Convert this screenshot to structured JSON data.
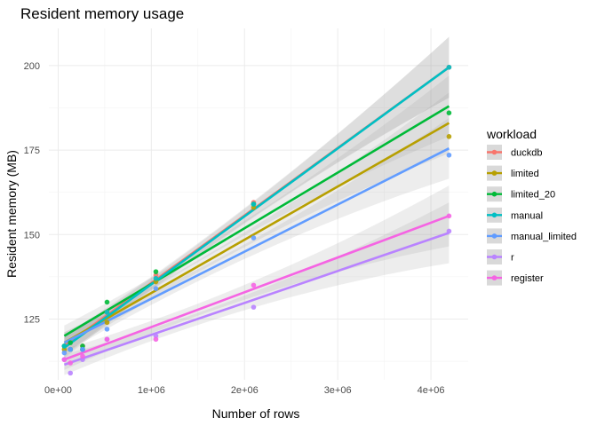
{
  "chart_data": {
    "type": "scatter",
    "title": "Resident memory usage",
    "xlabel": "Number of rows",
    "ylabel": "Resident memory (MB)",
    "xlim": [
      -100000,
      4400000
    ],
    "ylim": [
      107,
      211
    ],
    "x_ticks": [
      0,
      1000000,
      2000000,
      3000000,
      4000000
    ],
    "x_tick_labels": [
      "0e+00",
      "1e+06",
      "2e+06",
      "3e+06",
      "4e+06"
    ],
    "y_ticks": [
      125,
      150,
      175,
      200
    ],
    "y_tick_labels": [
      "125",
      "150",
      "175",
      "200"
    ],
    "grid": true,
    "legend_title": "workload",
    "legend_position": "right",
    "smoothing": "linear fit with confidence band",
    "series": [
      {
        "name": "duckdb",
        "color": "#F8766D",
        "points": [
          [
            65536,
            117
          ],
          [
            131072,
            116
          ],
          [
            262144,
            117
          ],
          [
            524288,
            127
          ],
          [
            1048576,
            138
          ],
          [
            2097152,
            159.5
          ],
          [
            4194304,
            199.5
          ]
        ],
        "fit": {
          "from": 65536,
          "to": 4194304,
          "y0": 117,
          "y1": 199.5
        }
      },
      {
        "name": "limited",
        "color": "#B79F00",
        "points": [
          [
            65536,
            116
          ],
          [
            131072,
            116
          ],
          [
            262144,
            116
          ],
          [
            524288,
            124
          ],
          [
            1048576,
            136
          ],
          [
            2097152,
            158
          ],
          [
            4194304,
            179
          ]
        ],
        "fit": {
          "from": 65536,
          "to": 4194304,
          "y0": 118,
          "y1": 183
        }
      },
      {
        "name": "limited_20",
        "color": "#00BA38",
        "points": [
          [
            65536,
            117
          ],
          [
            131072,
            118
          ],
          [
            262144,
            117
          ],
          [
            524288,
            130
          ],
          [
            1048576,
            139
          ],
          [
            2097152,
            159
          ],
          [
            4194304,
            186
          ]
        ],
        "fit": {
          "from": 65536,
          "to": 4194304,
          "y0": 120,
          "y1": 188
        }
      },
      {
        "name": "manual",
        "color": "#00BFC4",
        "points": [
          [
            65536,
            117
          ],
          [
            131072,
            116
          ],
          [
            262144,
            116
          ],
          [
            524288,
            127
          ],
          [
            1048576,
            137
          ],
          [
            2097152,
            159
          ],
          [
            4194304,
            199.5
          ]
        ],
        "fit": {
          "from": 65536,
          "to": 4194304,
          "y0": 116.5,
          "y1": 199.5
        }
      },
      {
        "name": "manual_limited",
        "color": "#619CFF",
        "points": [
          [
            65536,
            115
          ],
          [
            131072,
            116
          ],
          [
            262144,
            116
          ],
          [
            524288,
            122
          ],
          [
            1048576,
            134
          ],
          [
            2097152,
            149
          ],
          [
            4194304,
            173.5
          ]
        ],
        "fit": {
          "from": 65536,
          "to": 4194304,
          "y0": 118,
          "y1": 175.5
        }
      },
      {
        "name": "r",
        "color": "#B983FF",
        "points": [
          [
            65536,
            113
          ],
          [
            131072,
            109
          ],
          [
            262144,
            113
          ],
          [
            524288,
            119
          ],
          [
            1048576,
            120
          ],
          [
            2097152,
            128.5
          ],
          [
            4194304,
            151
          ]
        ],
        "fit": {
          "from": 65536,
          "to": 4194304,
          "y0": 111.5,
          "y1": 150.5
        }
      },
      {
        "name": "register",
        "color": "#F564E3",
        "points": [
          [
            65536,
            113
          ],
          [
            131072,
            112
          ],
          [
            262144,
            114
          ],
          [
            524288,
            119
          ],
          [
            1048576,
            119
          ],
          [
            2097152,
            135
          ],
          [
            4194304,
            155.5
          ]
        ],
        "fit": {
          "from": 65536,
          "to": 4194304,
          "y0": 113,
          "y1": 155.5
        }
      }
    ],
    "band": {
      "color": "#999999",
      "opacity": 0.4,
      "half_width_start": 5,
      "half_width_end": 9
    }
  }
}
